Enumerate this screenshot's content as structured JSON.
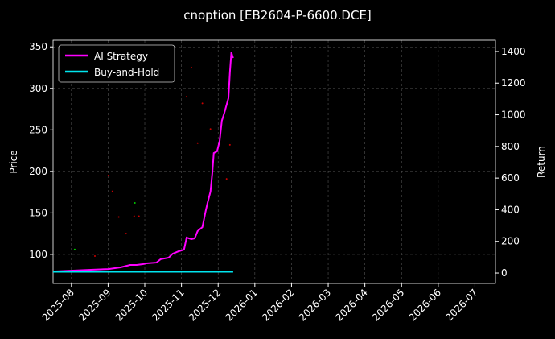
{
  "chart_data": {
    "type": "line",
    "title": "cnoption [EB2604-P-6600.DCE]",
    "y_label": "Price",
    "y2_label": "Return",
    "xlim": [
      -0.5,
      11.56
    ],
    "xticks": [
      {
        "value": 0,
        "label": "2025-08"
      },
      {
        "value": 1,
        "label": "2025-09"
      },
      {
        "value": 2,
        "label": "2025-10"
      },
      {
        "value": 3,
        "label": "2025-11"
      },
      {
        "value": 4,
        "label": "2025-12"
      },
      {
        "value": 5,
        "label": "2026-01"
      },
      {
        "value": 6,
        "label": "2026-02"
      },
      {
        "value": 7,
        "label": "2026-03"
      },
      {
        "value": 8,
        "label": "2026-04"
      },
      {
        "value": 9,
        "label": "2026-05"
      },
      {
        "value": 10,
        "label": "2026-06"
      },
      {
        "value": 11,
        "label": "2026-07"
      }
    ],
    "ylim": [
      65,
      358
    ],
    "yticks": [
      100,
      150,
      200,
      250,
      300,
      350
    ],
    "y2lim": [
      -66,
      1471
    ],
    "y2ticks": [
      0,
      200,
      400,
      600,
      800,
      1000,
      1200,
      1400
    ],
    "grid": true,
    "legend": "upper-left",
    "series": [
      {
        "name": "AI Strategy",
        "color": "#ff00ff",
        "axis": "y2",
        "x": [
          -0.5,
          0.46,
          1.01,
          1.34,
          1.6,
          1.78,
          1.95,
          2.04,
          2.32,
          2.43,
          2.65,
          2.76,
          2.92,
          3.07,
          3.14,
          3.27,
          3.36,
          3.44,
          3.57,
          3.66,
          3.71,
          3.79,
          3.84,
          3.88,
          3.97,
          4.04,
          4.1,
          4.17,
          4.28,
          4.32,
          4.36,
          4.39,
          4.41
        ],
        "values": [
          10,
          20,
          25,
          36,
          51,
          51,
          56,
          61,
          66,
          87,
          97,
          122,
          137,
          148,
          224,
          214,
          219,
          265,
          290,
          392,
          443,
          514,
          631,
          758,
          769,
          835,
          962,
          1013,
          1105,
          1268,
          1395,
          1370,
          1359
        ]
      },
      {
        "name": "Buy-and-Hold",
        "color": "#00e5ee",
        "axis": "y2",
        "x": [
          -0.5,
          4.41
        ],
        "values": [
          8,
          8
        ]
      }
    ],
    "points": [
      {
        "color": "#cc0000",
        "x": [
          0.64,
          1.01,
          1.12,
          1.29,
          1.49,
          1.71,
          1.84,
          3.14,
          3.27,
          3.44,
          3.57,
          3.79,
          4.23,
          4.32
        ],
        "values": [
          98,
          195,
          176,
          145,
          125,
          146,
          146,
          290,
          325,
          234,
          282,
          251,
          191,
          232
        ]
      },
      {
        "color": "#00cc00",
        "x": [
          0.09,
          1.73
        ],
        "values": [
          106,
          162
        ]
      }
    ]
  }
}
